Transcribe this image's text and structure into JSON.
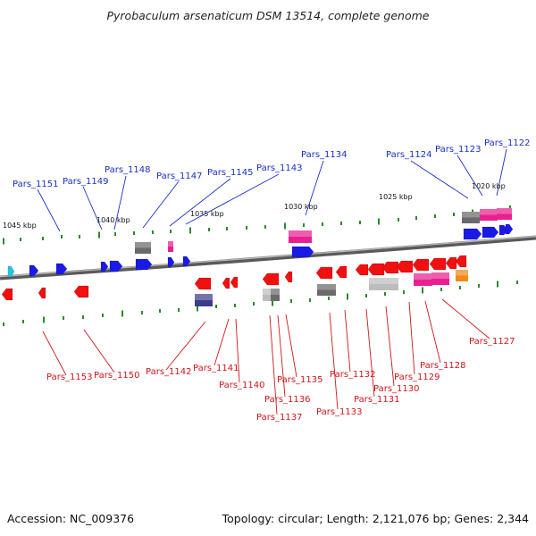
{
  "title": "Pyrobaculum arsenaticum DSM 13514, complete genome",
  "footer": {
    "accession": "Accession: NC_009376",
    "summary": "Topology: circular; Length: 2,121,076 bp; Genes: 2,344"
  },
  "colors": {
    "upper_label": "#1a2fc4",
    "lower_label": "#d0161a",
    "forward_gene": "#1a1ae6",
    "reverse_gene": "#f01010",
    "pink": "#e8208f",
    "gray": "#6a6a6a",
    "light_gray": "#bdbdbd",
    "navy": "#3d3d8a",
    "orange": "#f08a1a",
    "cyan": "#22c4e8",
    "tick": "#2a8a2a",
    "backbone": "#8c8c8c"
  },
  "kbp_markers": [
    "1045 kbp",
    "1040 kbp",
    "1035 kbp",
    "1030 kbp",
    "1025 kbp",
    "1020 kbp"
  ],
  "upper_labels": [
    "Pars_1151",
    "Pars_1149",
    "Pars_1148",
    "Pars_1147",
    "Pars_1145",
    "Pars_1143",
    "Pars_1134",
    "Pars_1124",
    "Pars_1123",
    "Pars_1122"
  ],
  "lower_labels": [
    "Pars_1153",
    "Pars_1150",
    "Pars_1142",
    "Pars_1141",
    "Pars_1140",
    "Pars_1137",
    "Pars_1136",
    "Pars_1135",
    "Pars_1133",
    "Pars_1132",
    "Pars_1131",
    "Pars_1130",
    "Pars_1129",
    "Pars_1128",
    "Pars_1127"
  ]
}
